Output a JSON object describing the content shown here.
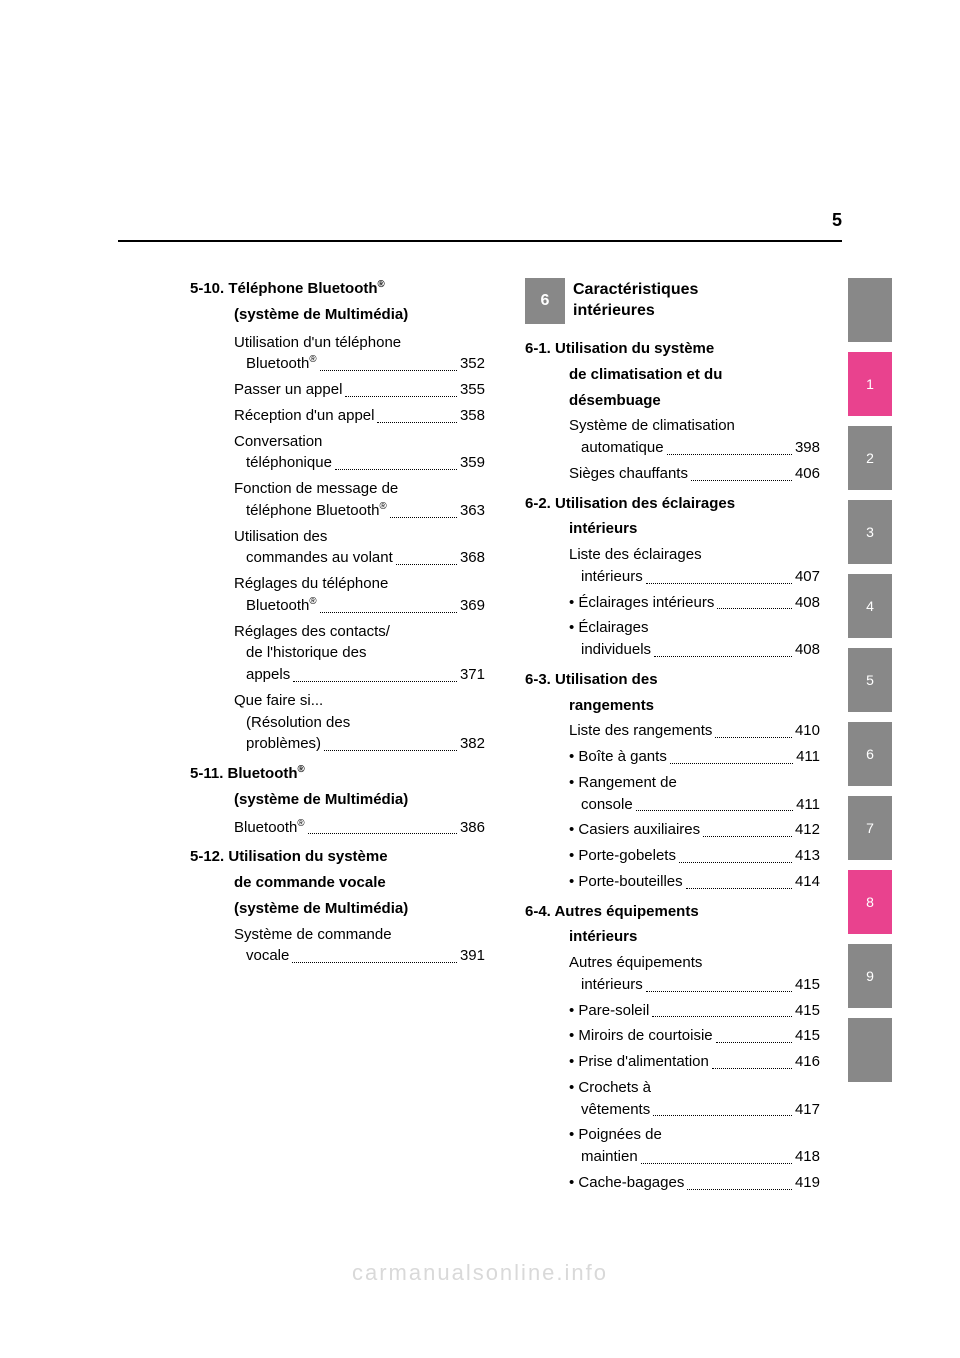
{
  "page_number": "5",
  "left_column": {
    "sections": [
      {
        "id": "5-10",
        "number": "5-10.",
        "title_lines": [
          "Téléphone Bluetooth®"
        ],
        "subtitle": "(système de Multimédia)",
        "entries": [
          {
            "lines": [
              "Utilisation d'un téléphone",
              "Bluetooth®"
            ],
            "page": "352"
          },
          {
            "lines": [
              "Passer un appel"
            ],
            "page": "355"
          },
          {
            "lines": [
              "Réception d'un appel"
            ],
            "page": "358"
          },
          {
            "lines": [
              "Conversation",
              "téléphonique"
            ],
            "page": "359"
          },
          {
            "lines": [
              "Fonction de message de",
              "téléphone Bluetooth®"
            ],
            "page": "363"
          },
          {
            "lines": [
              "Utilisation des",
              "commandes au volant"
            ],
            "page": "368"
          },
          {
            "lines": [
              "Réglages du téléphone",
              "Bluetooth®"
            ],
            "page": "369"
          },
          {
            "lines": [
              "Réglages des contacts/",
              "de l'historique des",
              "appels"
            ],
            "page": "371"
          },
          {
            "lines": [
              "Que faire si...",
              "(Résolution des",
              "problèmes)"
            ],
            "page": "382"
          }
        ]
      },
      {
        "id": "5-11",
        "number": "5-11.",
        "title_lines": [
          "Bluetooth®"
        ],
        "subtitle": "(système de Multimédia)",
        "entries": [
          {
            "lines": [
              "Bluetooth®"
            ],
            "page": "386"
          }
        ]
      },
      {
        "id": "5-12",
        "number": "5-12.",
        "title_lines": [
          "Utilisation du système",
          "de commande vocale",
          "(système de Multimédia)"
        ],
        "subtitle": "",
        "entries": [
          {
            "lines": [
              "Système de commande",
              "vocale"
            ],
            "page": "391"
          }
        ]
      }
    ]
  },
  "right_column": {
    "chapter": {
      "number": "6",
      "title_lines": [
        "Caractéristiques",
        "intérieures"
      ]
    },
    "sections": [
      {
        "id": "6-1",
        "number": "6-1.",
        "title_lines": [
          "Utilisation du système",
          "de climatisation et du",
          "désembuage"
        ],
        "entries": [
          {
            "lines": [
              "Système de climatisation",
              "automatique"
            ],
            "page": "398"
          },
          {
            "lines": [
              "Sièges chauffants"
            ],
            "page": "406"
          }
        ]
      },
      {
        "id": "6-2",
        "number": "6-2.",
        "title_lines": [
          "Utilisation des éclairages",
          "intérieurs"
        ],
        "entries": [
          {
            "lines": [
              "Liste des éclairages",
              "intérieurs"
            ],
            "page": "407"
          },
          {
            "lines": [
              "• Éclairages intérieurs"
            ],
            "page": "408",
            "bullet": true
          },
          {
            "lines": [
              "• Éclairages",
              "individuels"
            ],
            "page": "408",
            "bullet": true
          }
        ]
      },
      {
        "id": "6-3",
        "number": "6-3.",
        "title_lines": [
          "Utilisation des",
          "rangements"
        ],
        "entries": [
          {
            "lines": [
              "Liste des rangements"
            ],
            "page": "410"
          },
          {
            "lines": [
              "• Boîte à gants"
            ],
            "page": "411",
            "bullet": true
          },
          {
            "lines": [
              "• Rangement de",
              "console"
            ],
            "page": "411",
            "bullet": true
          },
          {
            "lines": [
              "• Casiers auxiliaires"
            ],
            "page": "412",
            "bullet": true
          },
          {
            "lines": [
              "• Porte-gobelets"
            ],
            "page": "413",
            "bullet": true
          },
          {
            "lines": [
              "• Porte-bouteilles"
            ],
            "page": "414",
            "bullet": true
          }
        ]
      },
      {
        "id": "6-4",
        "number": "6-4.",
        "title_lines": [
          "Autres équipements",
          "intérieurs"
        ],
        "entries": [
          {
            "lines": [
              "Autres équipements",
              "intérieurs"
            ],
            "page": "415"
          },
          {
            "lines": [
              "• Pare-soleil"
            ],
            "page": "415",
            "bullet": true
          },
          {
            "lines": [
              "• Miroirs de courtoisie"
            ],
            "page": "415",
            "bullet": true
          },
          {
            "lines": [
              "• Prise d'alimentation"
            ],
            "page": "416",
            "bullet": true
          },
          {
            "lines": [
              "• Crochets à",
              "vêtements"
            ],
            "page": "417",
            "bullet": true
          },
          {
            "lines": [
              "• Poignées de",
              "maintien"
            ],
            "page": "418",
            "bullet": true
          },
          {
            "lines": [
              "• Cache-bagages"
            ],
            "page": "419",
            "bullet": true
          }
        ]
      }
    ]
  },
  "tabs": [
    {
      "label": "",
      "color": "#888888",
      "blank": true
    },
    {
      "label": "1",
      "color": "#e9428e"
    },
    {
      "label": "2",
      "color": "#888888"
    },
    {
      "label": "3",
      "color": "#888888"
    },
    {
      "label": "4",
      "color": "#888888"
    },
    {
      "label": "5",
      "color": "#888888"
    },
    {
      "label": "6",
      "color": "#888888"
    },
    {
      "label": "7",
      "color": "#888888"
    },
    {
      "label": "8",
      "color": "#e9428e"
    },
    {
      "label": "9",
      "color": "#888888"
    },
    {
      "label": "",
      "color": "#888888",
      "blank": true
    }
  ],
  "watermark": "carmanualsonline.info",
  "colors": {
    "text": "#000000",
    "background": "#ffffff",
    "tab_gray": "#888888",
    "tab_pink": "#e9428e",
    "watermark": "#d9d9d9"
  },
  "chapter_banner_bg": "#888888"
}
